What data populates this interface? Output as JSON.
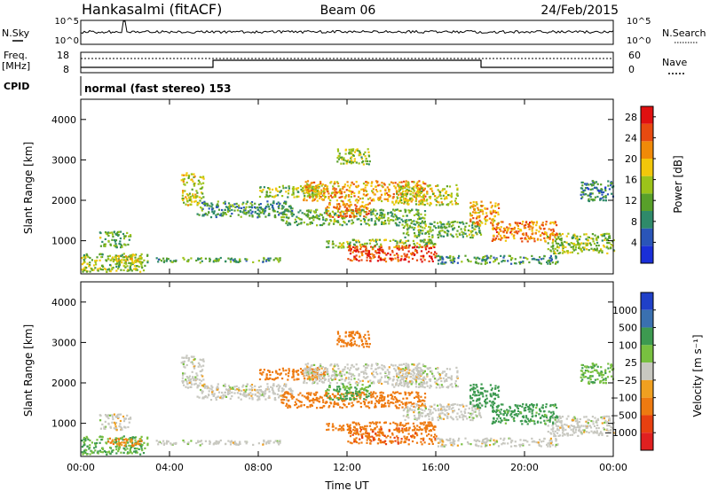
{
  "header": {
    "station": "Hankasalmi (fitACF)",
    "beam": "Beam 06",
    "date": "24/Feb/2015"
  },
  "noise_panel": {
    "left_label": "N.Sky",
    "right_label": "N.Search",
    "left_ticks": [
      "10^5",
      "10^0"
    ],
    "right_ticks": [
      "10^5",
      "10^0"
    ]
  },
  "freq_panel": {
    "left_label_1": "Freq.",
    "left_label_2": "[MHz]",
    "left_ticks": [
      "18",
      "8"
    ],
    "right_label": "Nave",
    "right_ticks": [
      "60",
      "0"
    ]
  },
  "cpid": {
    "label": "CPID",
    "text": "normal (fast stereo) 153"
  },
  "colors": {
    "power": [
      "#1a2fd8",
      "#2a55b8",
      "#2f8a6a",
      "#58a02a",
      "#9cc31a",
      "#f2c70a",
      "#f08a08",
      "#e84a10",
      "#e01010"
    ],
    "velocity": [
      "#2040c8",
      "#3a70b0",
      "#3d9a50",
      "#78c040",
      "#c8c8c0",
      "#f0a020",
      "#ee7a10",
      "#e84010",
      "#e02020"
    ]
  },
  "chart_data": [
    {
      "type": "heatmap",
      "title": "Power",
      "ylabel": "Slant Range [km]",
      "xlabel": "",
      "x_ticks": [
        "00:00",
        "04:00",
        "08:00",
        "12:00",
        "16:00",
        "20:00",
        "00:00"
      ],
      "y_ticks": [
        "1000",
        "2000",
        "3000",
        "4000"
      ],
      "ylim": [
        180,
        4500
      ],
      "xlim_hours": [
        0,
        24
      ],
      "colorbar": {
        "label": "Power [dB]",
        "ticks": [
          "4",
          "8",
          "12",
          "16",
          "20",
          "24",
          "28"
        ],
        "range": [
          0,
          30
        ]
      },
      "echo_regions": [
        {
          "t": [
            0.0,
            3.0
          ],
          "r": [
            250,
            700
          ],
          "value": 14
        },
        {
          "t": [
            0.8,
            2.2
          ],
          "r": [
            850,
            1250
          ],
          "value": 12
        },
        {
          "t": [
            1.2,
            2.8
          ],
          "r": [
            450,
            650
          ],
          "value": 18
        },
        {
          "t": [
            3.0,
            9.0
          ],
          "r": [
            480,
            600
          ],
          "value": 10
        },
        {
          "t": [
            4.5,
            5.5
          ],
          "r": [
            1900,
            2700
          ],
          "value": 16
        },
        {
          "t": [
            5.2,
            9.5
          ],
          "r": [
            1600,
            2000
          ],
          "value": 10
        },
        {
          "t": [
            8.0,
            11.0
          ],
          "r": [
            2100,
            2400
          ],
          "value": 14
        },
        {
          "t": [
            9.0,
            15.5
          ],
          "r": [
            1400,
            1800
          ],
          "value": 12
        },
        {
          "t": [
            10.0,
            15.5
          ],
          "r": [
            2000,
            2500
          ],
          "value": 20
        },
        {
          "t": [
            11.0,
            13.0
          ],
          "r": [
            1600,
            2000
          ],
          "value": 22
        },
        {
          "t": [
            11.0,
            16.0
          ],
          "r": [
            850,
            1050
          ],
          "value": 14
        },
        {
          "t": [
            12.0,
            16.0
          ],
          "r": [
            500,
            900
          ],
          "value": 26
        },
        {
          "t": [
            11.5,
            13.0
          ],
          "r": [
            2900,
            3300
          ],
          "value": 14
        },
        {
          "t": [
            14.0,
            17.0
          ],
          "r": [
            1900,
            2400
          ],
          "value": 16
        },
        {
          "t": [
            14.5,
            18.0
          ],
          "r": [
            1100,
            1500
          ],
          "value": 12
        },
        {
          "t": [
            16.0,
            21.5
          ],
          "r": [
            450,
            650
          ],
          "value": 10
        },
        {
          "t": [
            17.5,
            18.8
          ],
          "r": [
            1400,
            2000
          ],
          "value": 20
        },
        {
          "t": [
            18.5,
            21.5
          ],
          "r": [
            1000,
            1500
          ],
          "value": 22
        },
        {
          "t": [
            21.0,
            24.0
          ],
          "r": [
            700,
            1200
          ],
          "value": 14
        },
        {
          "t": [
            22.5,
            24.0
          ],
          "r": [
            2000,
            2500
          ],
          "value": 8
        }
      ]
    },
    {
      "type": "heatmap",
      "title": "Velocity",
      "ylabel": "Slant Range [km]",
      "xlabel": "Time UT",
      "x_ticks": [
        "00:00",
        "04:00",
        "08:00",
        "12:00",
        "16:00",
        "20:00",
        "00:00"
      ],
      "y_ticks": [
        "1000",
        "2000",
        "3000",
        "4000"
      ],
      "ylim": [
        180,
        4500
      ],
      "xlim_hours": [
        0,
        24
      ],
      "colorbar": {
        "label": "Velocity [m s⁻¹]",
        "ticks": [
          "1000",
          "500",
          "100",
          "25",
          "−25",
          "−100",
          "−500",
          "−1000"
        ]
      },
      "echo_regions": [
        {
          "t": [
            0.0,
            3.0
          ],
          "r": [
            250,
            700
          ],
          "value": 100
        },
        {
          "t": [
            0.8,
            2.2
          ],
          "r": [
            850,
            1250
          ],
          "value": 0
        },
        {
          "t": [
            1.2,
            2.8
          ],
          "r": [
            450,
            650
          ],
          "value": -100
        },
        {
          "t": [
            3.0,
            9.0
          ],
          "r": [
            480,
            600
          ],
          "value": 0
        },
        {
          "t": [
            4.5,
            5.5
          ],
          "r": [
            1900,
            2700
          ],
          "value": 0
        },
        {
          "t": [
            5.2,
            9.5
          ],
          "r": [
            1600,
            2000
          ],
          "value": 0
        },
        {
          "t": [
            8.0,
            11.0
          ],
          "r": [
            2100,
            2400
          ],
          "value": -200
        },
        {
          "t": [
            9.0,
            15.5
          ],
          "r": [
            1400,
            1800
          ],
          "value": -300
        },
        {
          "t": [
            10.0,
            15.5
          ],
          "r": [
            2000,
            2500
          ],
          "value": 0
        },
        {
          "t": [
            11.0,
            13.0
          ],
          "r": [
            1600,
            2000
          ],
          "value": 100
        },
        {
          "t": [
            11.0,
            16.0
          ],
          "r": [
            850,
            1050
          ],
          "value": -300
        },
        {
          "t": [
            12.0,
            16.0
          ],
          "r": [
            500,
            900
          ],
          "value": -400
        },
        {
          "t": [
            11.5,
            13.0
          ],
          "r": [
            2900,
            3300
          ],
          "value": -300
        },
        {
          "t": [
            14.0,
            17.0
          ],
          "r": [
            1900,
            2400
          ],
          "value": 0
        },
        {
          "t": [
            14.5,
            18.0
          ],
          "r": [
            1100,
            1500
          ],
          "value": 0
        },
        {
          "t": [
            16.0,
            21.5
          ],
          "r": [
            450,
            650
          ],
          "value": 0
        },
        {
          "t": [
            17.5,
            18.8
          ],
          "r": [
            1400,
            2000
          ],
          "value": 200
        },
        {
          "t": [
            18.5,
            21.5
          ],
          "r": [
            1000,
            1500
          ],
          "value": 150
        },
        {
          "t": [
            21.0,
            24.0
          ],
          "r": [
            700,
            1200
          ],
          "value": 0
        },
        {
          "t": [
            22.5,
            24.0
          ],
          "r": [
            2000,
            2500
          ],
          "value": 80
        }
      ]
    }
  ]
}
